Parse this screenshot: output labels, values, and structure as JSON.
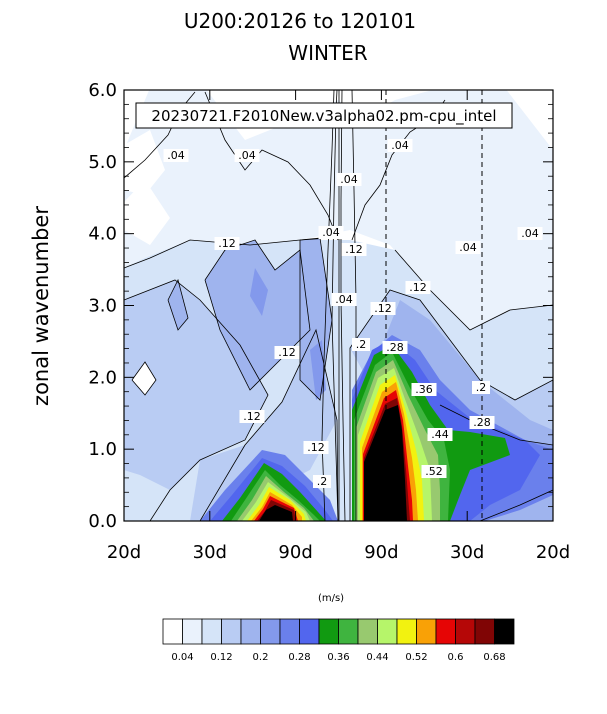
{
  "chart_data": {
    "type": "contour",
    "title": "U200:20126 to 120101",
    "subtitle": "WINTER",
    "ylabel": "zonal wavenumber",
    "annotation": "20230721.F2010New.v3alpha02.pm-cpu_intel",
    "ylim": [
      0,
      6
    ],
    "y_ticks": [
      "0.0",
      "1.0",
      "2.0",
      "3.0",
      "4.0",
      "5.0",
      "6.0"
    ],
    "x_ticks": [
      "20d",
      "30d",
      "90d",
      "90d",
      "30d",
      "20d"
    ],
    "dashed_reference_x": [
      2,
      3
    ],
    "colorbar": {
      "unit": "(m/s)",
      "labels": [
        "0.04",
        "0.12",
        "0.2",
        "0.28",
        "0.36",
        "0.44",
        "0.52",
        "0.6",
        "0.68"
      ],
      "colors": [
        "#ffffff",
        "#eaf2fc",
        "#d5e4f8",
        "#b9ccf3",
        "#9fb4ee",
        "#8399ec",
        "#6a80ec",
        "#5266ee",
        "#119a11",
        "#3fb43f",
        "#98c96f",
        "#b6f56a",
        "#f2f210",
        "#f9a106",
        "#e60505",
        "#b50707",
        "#800505",
        "#000000"
      ]
    },
    "contour_labels": [
      ".04",
      ".04",
      ".04",
      ".04",
      ".04",
      ".04",
      ".04",
      ".04",
      ".12",
      ".12",
      ".12",
      ".12",
      ".12",
      ".12",
      ".12",
      ".2",
      ".2",
      ".2",
      ".28",
      ".28",
      ".36",
      ".44",
      ".52"
    ],
    "grid": false,
    "legend": "bottom"
  }
}
